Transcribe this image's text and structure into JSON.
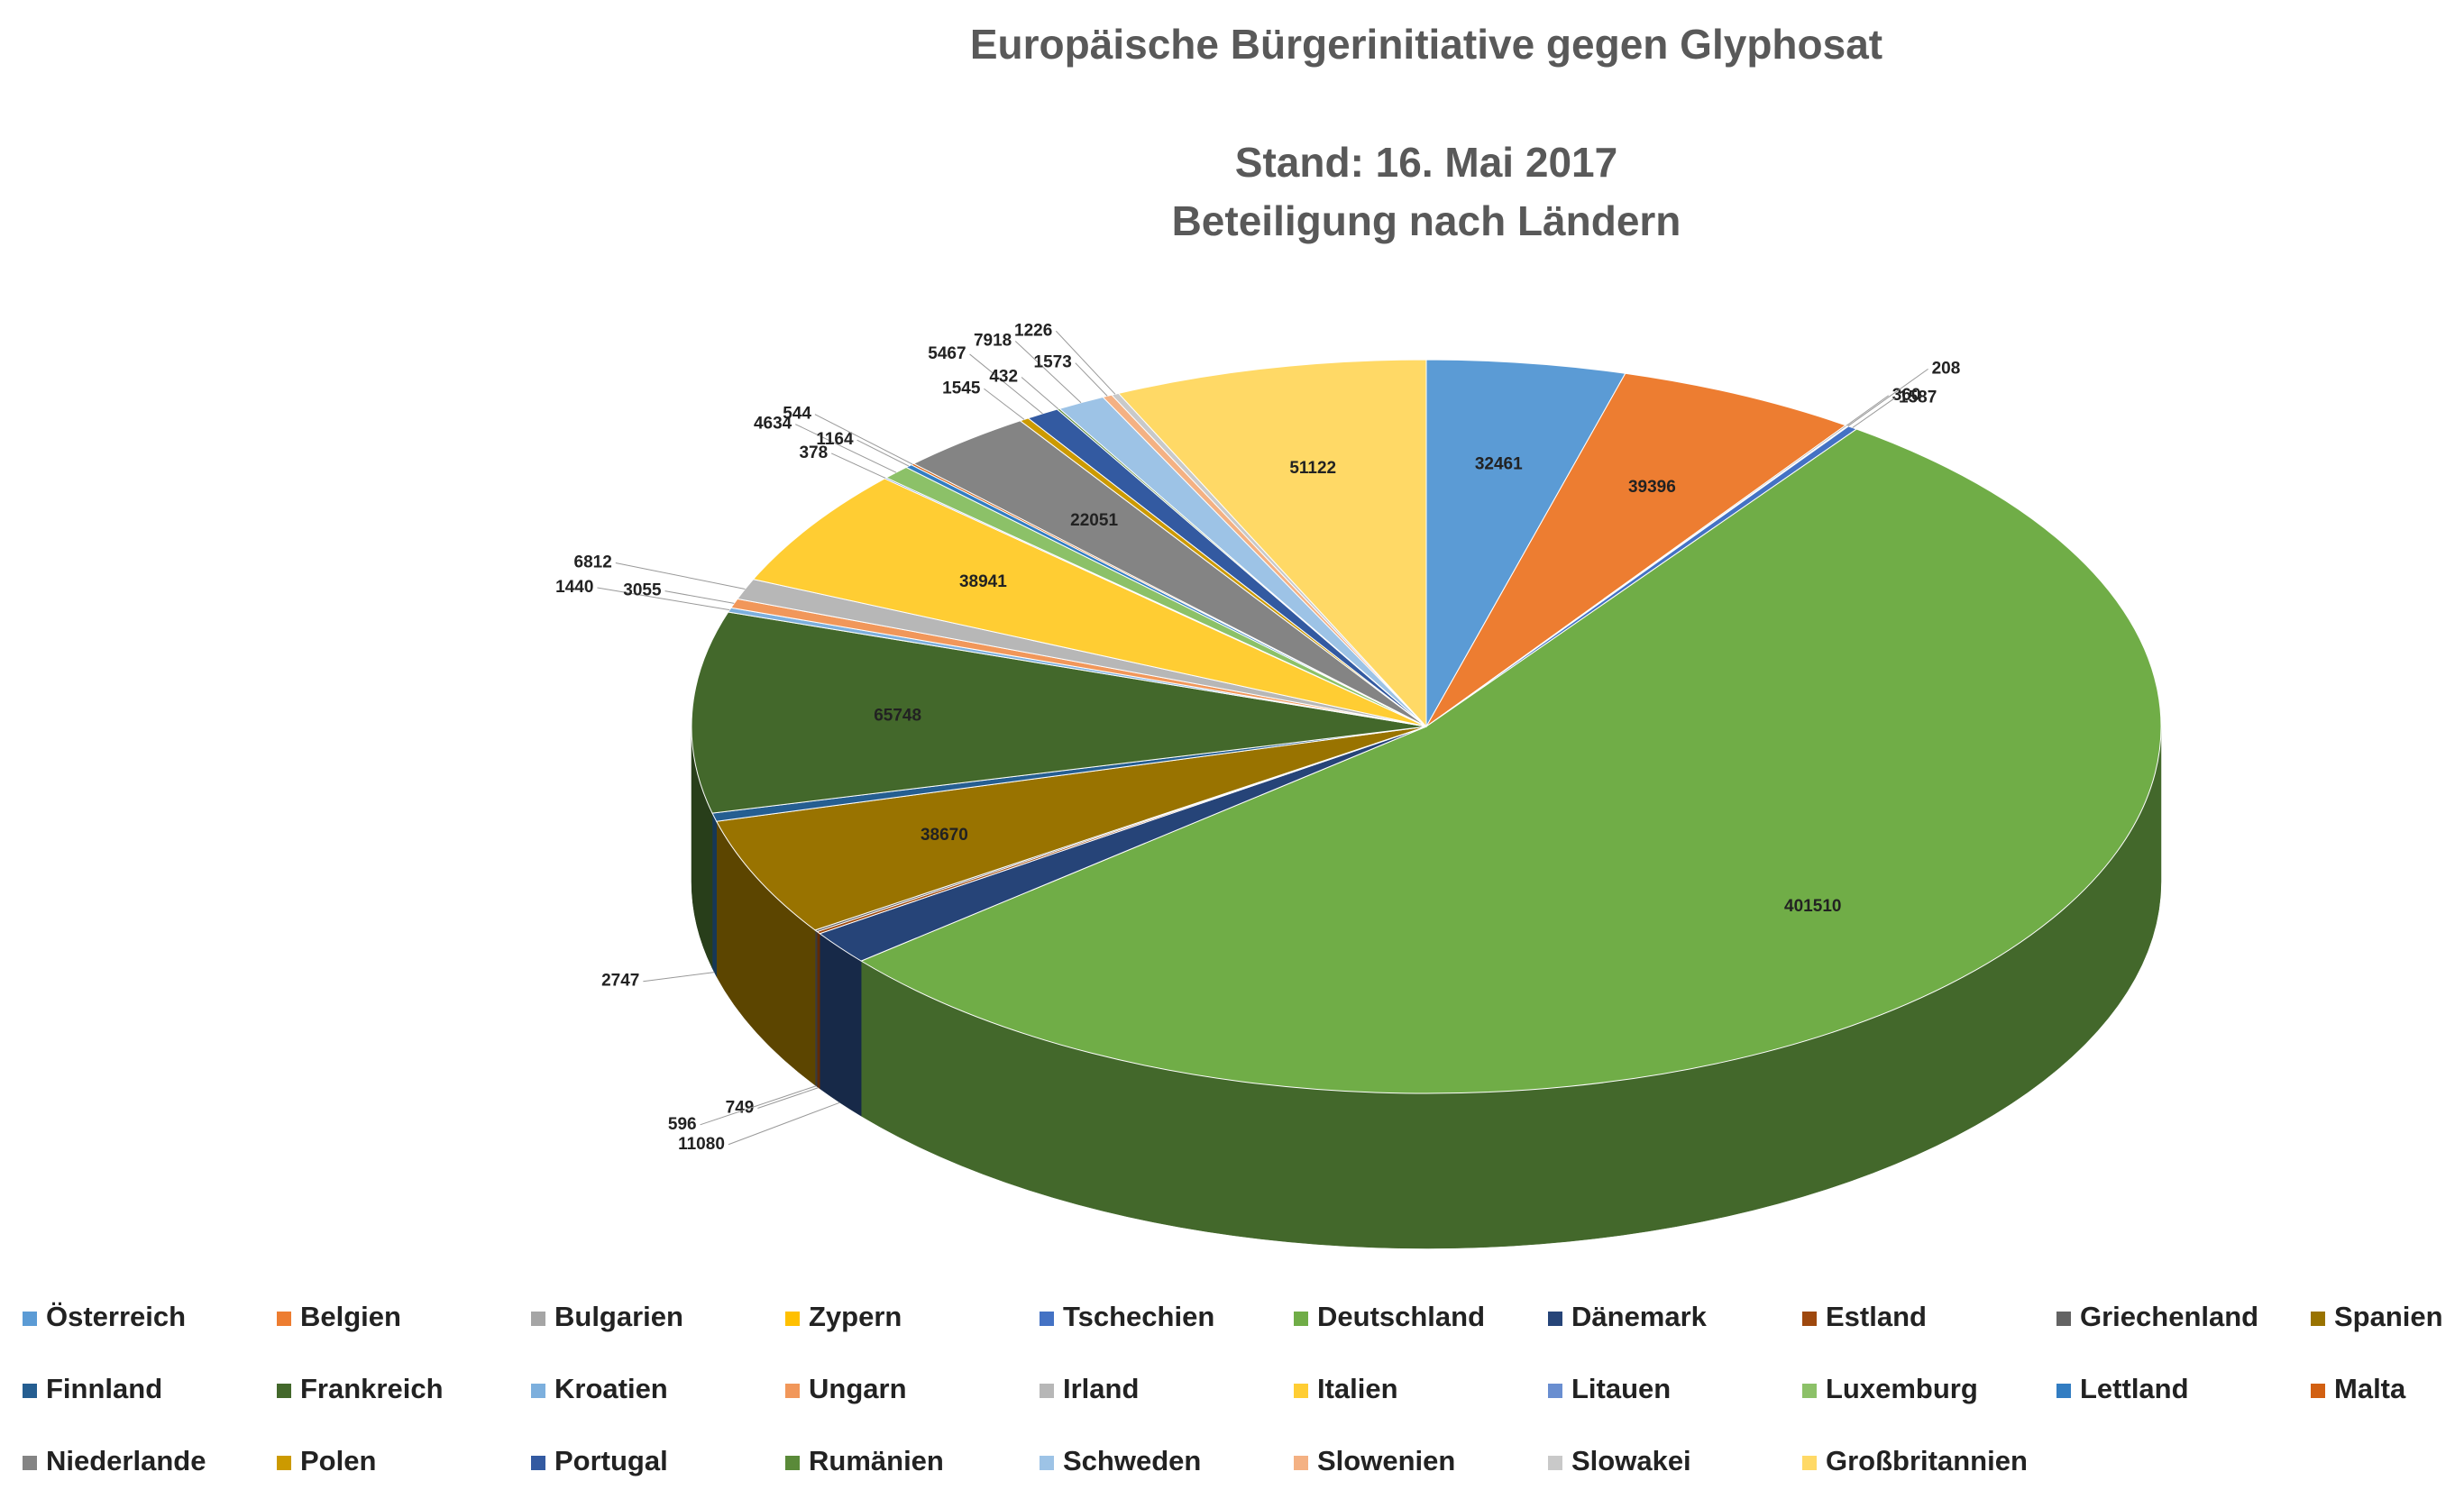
{
  "chart_data": {
    "type": "pie3d",
    "title": [
      "Europäische Bürgerinitiative gegen Glyphosat",
      "Stand: 16. Mai 2017",
      "Beteiligung nach Ländern"
    ],
    "categories": [
      "Österreich",
      "Belgien",
      "Bulgarien",
      "Zypern",
      "Tschechien",
      "Deutschland",
      "Dänemark",
      "Estland",
      "Griechenland",
      "Spanien",
      "Finnland",
      "Frankreich",
      "Kroatien",
      "Ungarn",
      "Irland",
      "Italien",
      "Litauen",
      "Luxemburg",
      "Lettland",
      "Malta",
      "Niederlande",
      "Polen",
      "Portugal",
      "Rumänien",
      "Schweden",
      "Slowenien",
      "Slowakei",
      "Großbritannien"
    ],
    "values": [
      32461,
      39396,
      360,
      208,
      1587,
      401510,
      11080,
      749,
      596,
      38670,
      2747,
      65748,
      1440,
      3055,
      6812,
      38941,
      378,
      4634,
      1164,
      544,
      22051,
      1545,
      5467,
      432,
      7918,
      1573,
      1226,
      51122
    ],
    "colors": [
      "#5b9bd5",
      "#ed7d31",
      "#a5a5a5",
      "#ffc000",
      "#4472c4",
      "#70ad47",
      "#264478",
      "#9e480e",
      "#636363",
      "#997300",
      "#255e91",
      "#43682b",
      "#7cafdd",
      "#f1975a",
      "#b7b7b7",
      "#ffcd33",
      "#698ed0",
      "#8cc168",
      "#327dc2",
      "#d26012",
      "#848484",
      "#cc9a00",
      "#335aa1",
      "#5a8a39",
      "#9dc3e6",
      "#f4b183",
      "#c9c9c9",
      "#ffd966"
    ],
    "legend": "bottom"
  }
}
